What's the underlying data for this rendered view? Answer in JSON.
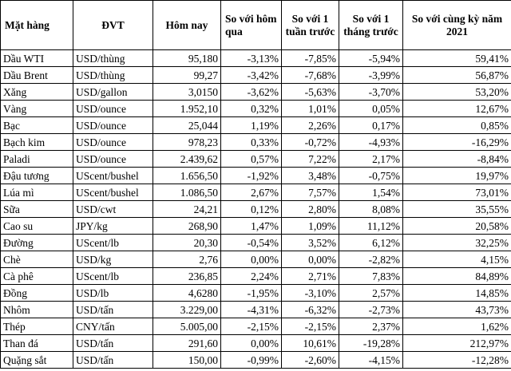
{
  "headers": {
    "item": "Mặt hàng",
    "unit": "ĐVT",
    "today": "Hôm nay",
    "vs_yesterday": "So với hôm qua",
    "vs_week": "So với 1 tuần trước",
    "vs_month": "So với 1 tháng trước",
    "vs_year": "So với cùng kỳ năm 2021"
  },
  "rows": [
    {
      "name": "Dầu WTI",
      "unit": "USD/thùng",
      "today": "95,180",
      "d1": "-3,13%",
      "w1": "-7,85%",
      "m1": "-5,94%",
      "y1": "59,41%"
    },
    {
      "name": "Dầu Brent",
      "unit": "USD/thùng",
      "today": "99,27",
      "d1": "-3,42%",
      "w1": "-7,68%",
      "m1": "-3,99%",
      "y1": "56,87%"
    },
    {
      "name": "Xăng",
      "unit": "USD/gallon",
      "today": "3,0150",
      "d1": "-3,62%",
      "w1": "-5,63%",
      "m1": "-3,70%",
      "y1": "53,20%"
    },
    {
      "name": "Vàng",
      "unit": "USD/ounce",
      "today": "1.952,10",
      "d1": "0,32%",
      "w1": "1,01%",
      "m1": "0,05%",
      "y1": "12,67%"
    },
    {
      "name": "Bạc",
      "unit": "USD/ounce",
      "today": "25,044",
      "d1": "1,19%",
      "w1": "2,26%",
      "m1": "0,17%",
      "y1": "0,85%"
    },
    {
      "name": "Bạch kim",
      "unit": "USD/ounce",
      "today": "978,23",
      "d1": "0,33%",
      "w1": "-0,72%",
      "m1": "-4,93%",
      "y1": "-16,29%"
    },
    {
      "name": "Paladi",
      "unit": "USD/ounce",
      "today": "2.439,62",
      "d1": "0,57%",
      "w1": "7,22%",
      "m1": "2,17%",
      "y1": "-8,84%"
    },
    {
      "name": "Đậu tương",
      "unit": "UScent/bushel",
      "today": "1.656,50",
      "d1": "-1,92%",
      "w1": "3,48%",
      "m1": "-0,75%",
      "y1": "19,97%"
    },
    {
      "name": "Lúa mì",
      "unit": "UScent/bushel",
      "today": "1.086,50",
      "d1": "2,67%",
      "w1": "7,57%",
      "m1": "1,54%",
      "y1": "73,01%"
    },
    {
      "name": "Sữa",
      "unit": "USD/cwt",
      "today": "24,21",
      "d1": "0,12%",
      "w1": "2,80%",
      "m1": "8,08%",
      "y1": "35,55%"
    },
    {
      "name": "Cao su",
      "unit": "JPY/kg",
      "today": "268,90",
      "d1": "1,47%",
      "w1": "1,09%",
      "m1": "11,12%",
      "y1": "20,58%"
    },
    {
      "name": "Đường",
      "unit": "UScent/lb",
      "today": "20,30",
      "d1": "-0,54%",
      "w1": "3,52%",
      "m1": "6,12%",
      "y1": "32,25%"
    },
    {
      "name": "Chè",
      "unit": "USD/kg",
      "today": "2,76",
      "d1": "0,00%",
      "w1": "0,00%",
      "m1": "-2,82%",
      "y1": "4,15%"
    },
    {
      "name": "Cà phê",
      "unit": "UScent/lb",
      "today": "236,85",
      "d1": "2,24%",
      "w1": "2,71%",
      "m1": "7,83%",
      "y1": "84,89%"
    },
    {
      "name": "Đồng",
      "unit": "USD/lb",
      "today": "4,6280",
      "d1": "-1,95%",
      "w1": "-3,10%",
      "m1": "2,57%",
      "y1": "14,85%"
    },
    {
      "name": "Nhôm",
      "unit": "USD/tấn",
      "today": "3.229,00",
      "d1": "-4,31%",
      "w1": "-6,32%",
      "m1": "-2,73%",
      "y1": "43,73%"
    },
    {
      "name": "Thép",
      "unit": "CNY/tấn",
      "today": "5.005,00",
      "d1": "-2,15%",
      "w1": "-2,15%",
      "m1": "2,37%",
      "y1": "1,62%"
    },
    {
      "name": "Than đá",
      "unit": "USD/tấn",
      "today": "291,60",
      "d1": "0,00%",
      "w1": "10,61%",
      "m1": "-19,28%",
      "y1": "212,97%"
    },
    {
      "name": "Quặng sắt",
      "unit": "USD/tấn",
      "today": "150,00",
      "d1": "-0,99%",
      "w1": "-2,60%",
      "m1": "-4,15%",
      "y1": "-12,28%"
    }
  ]
}
